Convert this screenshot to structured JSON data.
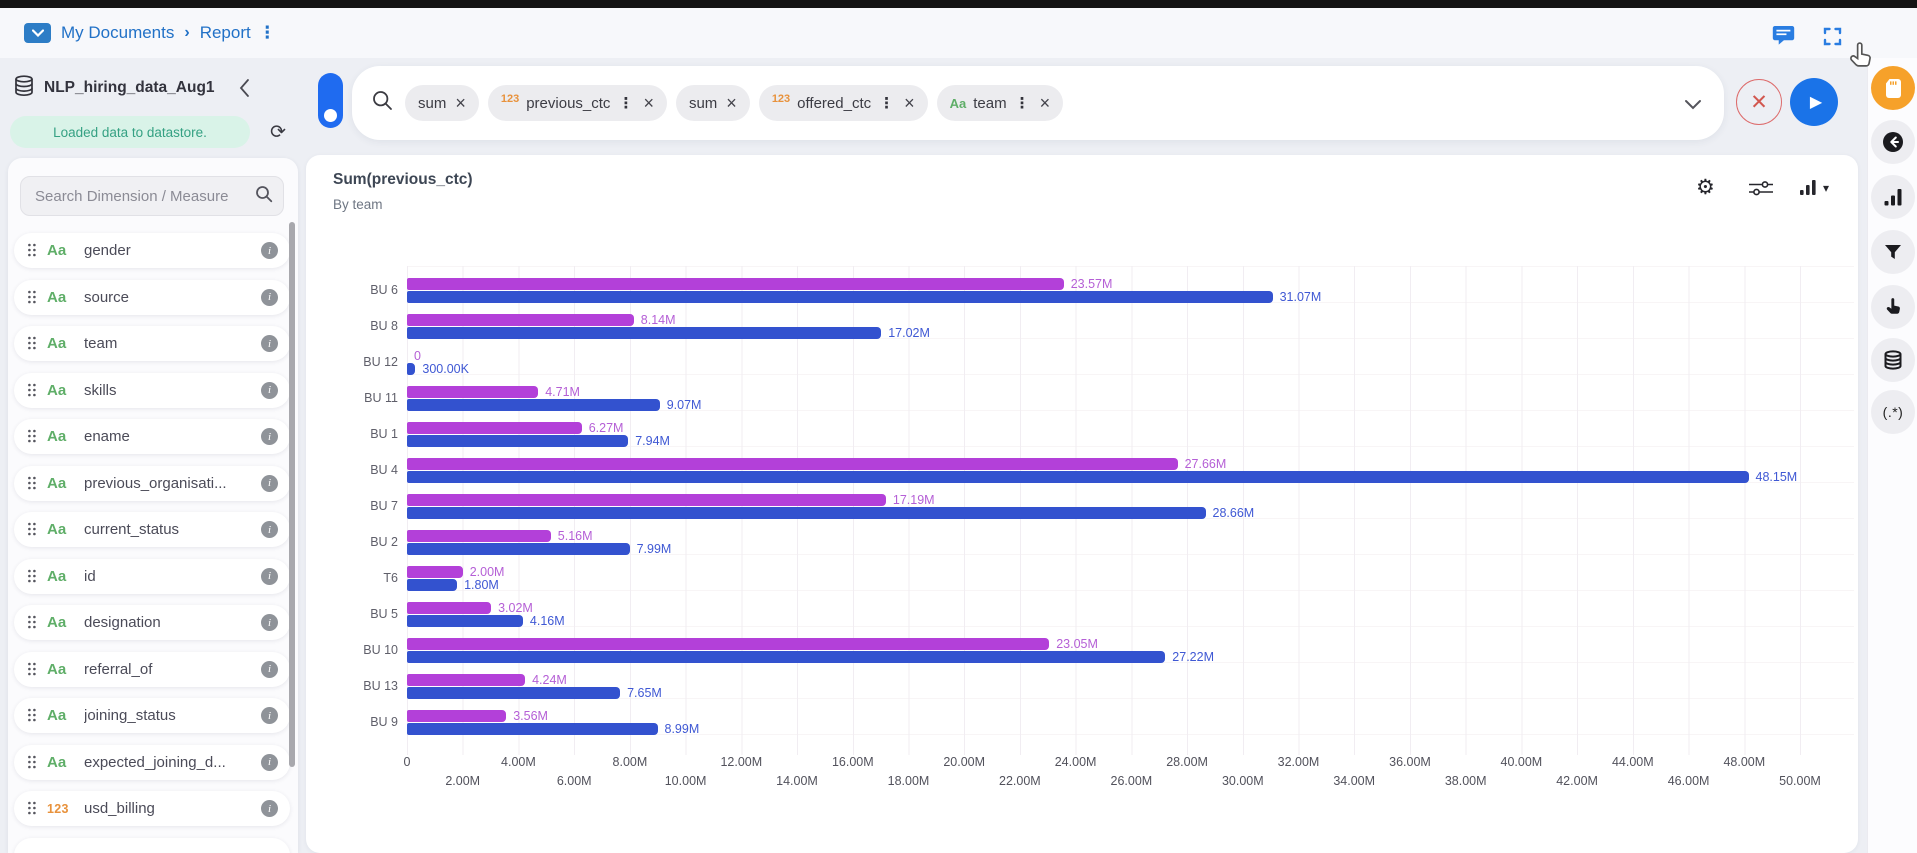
{
  "header": {
    "breadcrumb": {
      "root": "My Documents",
      "separator": "›",
      "current": "Report"
    }
  },
  "query_bar": {
    "chips": [
      {
        "prefix": null,
        "label": "sum",
        "menu": false
      },
      {
        "prefix": "123",
        "label": "previous_ctc",
        "menu": true
      },
      {
        "prefix": null,
        "label": "sum",
        "menu": false
      },
      {
        "prefix": "123",
        "label": "offered_ctc",
        "menu": true
      },
      {
        "prefix": "Aa",
        "label": "team",
        "menu": true
      }
    ]
  },
  "sidebar": {
    "datasource": "NLP_hiring_data_Aug1",
    "status": "Loaded data to datastore.",
    "search_placeholder": "Search Dimension / Measure",
    "fields": [
      {
        "type": "Aa",
        "name": "gender"
      },
      {
        "type": "Aa",
        "name": "source"
      },
      {
        "type": "Aa",
        "name": "team"
      },
      {
        "type": "Aa",
        "name": "skills"
      },
      {
        "type": "Aa",
        "name": "ename"
      },
      {
        "type": "Aa",
        "name": "previous_organisati..."
      },
      {
        "type": "Aa",
        "name": "current_status"
      },
      {
        "type": "Aa",
        "name": "id"
      },
      {
        "type": "Aa",
        "name": "designation"
      },
      {
        "type": "Aa",
        "name": "referral_of"
      },
      {
        "type": "Aa",
        "name": "joining_status"
      },
      {
        "type": "Aa",
        "name": "expected_joining_d..."
      },
      {
        "type": "123",
        "name": "usd_billing"
      }
    ]
  },
  "chart_data": {
    "type": "bar",
    "orientation": "horizontal",
    "title": "Sum(previous_ctc)",
    "subtitle": "By team",
    "categories": [
      "BU 6",
      "BU 8",
      "BU 12",
      "BU 11",
      "BU 1",
      "BU 4",
      "BU 7",
      "BU 2",
      "T6",
      "BU 5",
      "BU 10",
      "BU 13",
      "BU 9"
    ],
    "series": [
      {
        "name": "previous_ctc",
        "color": "#b340d9",
        "label_color": "#b55fd6",
        "values_M": [
          23.57,
          8.14,
          0,
          4.71,
          6.27,
          27.66,
          17.19,
          5.16,
          2.0,
          3.02,
          23.05,
          4.24,
          3.56
        ],
        "labels": [
          "23.57M",
          "8.14M",
          "0",
          "4.71M",
          "6.27M",
          "27.66M",
          "17.19M",
          "5.16M",
          "2.00M",
          "3.02M",
          "23.05M",
          "4.24M",
          "3.56M"
        ]
      },
      {
        "name": "offered_ctc",
        "color": "#3352cf",
        "label_color": "#3f58d4",
        "values_M": [
          31.07,
          17.02,
          0.3,
          9.07,
          7.94,
          48.15,
          28.66,
          7.99,
          1.8,
          4.16,
          27.22,
          7.65,
          8.99
        ],
        "labels": [
          "31.07M",
          "17.02M",
          "300.00K",
          "9.07M",
          "7.94M",
          "48.15M",
          "28.66M",
          "7.99M",
          "1.80M",
          "4.16M",
          "27.22M",
          "7.65M",
          "8.99M"
        ]
      }
    ],
    "xlim_M": [
      0,
      50
    ],
    "x_tick_step_M": 2,
    "x_ticks": [
      "0",
      "2.00M",
      "4.00M",
      "6.00M",
      "8.00M",
      "10.00M",
      "12.00M",
      "14.00M",
      "16.00M",
      "18.00M",
      "20.00M",
      "22.00M",
      "24.00M",
      "26.00M",
      "28.00M",
      "30.00M",
      "32.00M",
      "34.00M",
      "36.00M",
      "38.00M",
      "40.00M",
      "42.00M",
      "44.00M",
      "46.00M",
      "48.00M",
      "50.00M"
    ],
    "grid": true,
    "value_labels": true
  },
  "right_rail": {
    "regex_label": "(.*)"
  },
  "colors": {
    "accent_blue": "#1a73e8",
    "link_blue": "#2171c7",
    "status_green_bg": "#d9f3e8",
    "status_green_text": "#35a183",
    "bar_purple": "#b340d9",
    "bar_blue": "#3352cf",
    "rail_orange": "#f6a12a",
    "field_text_green": "#5fae68",
    "field_num_orange": "#e8923c"
  }
}
